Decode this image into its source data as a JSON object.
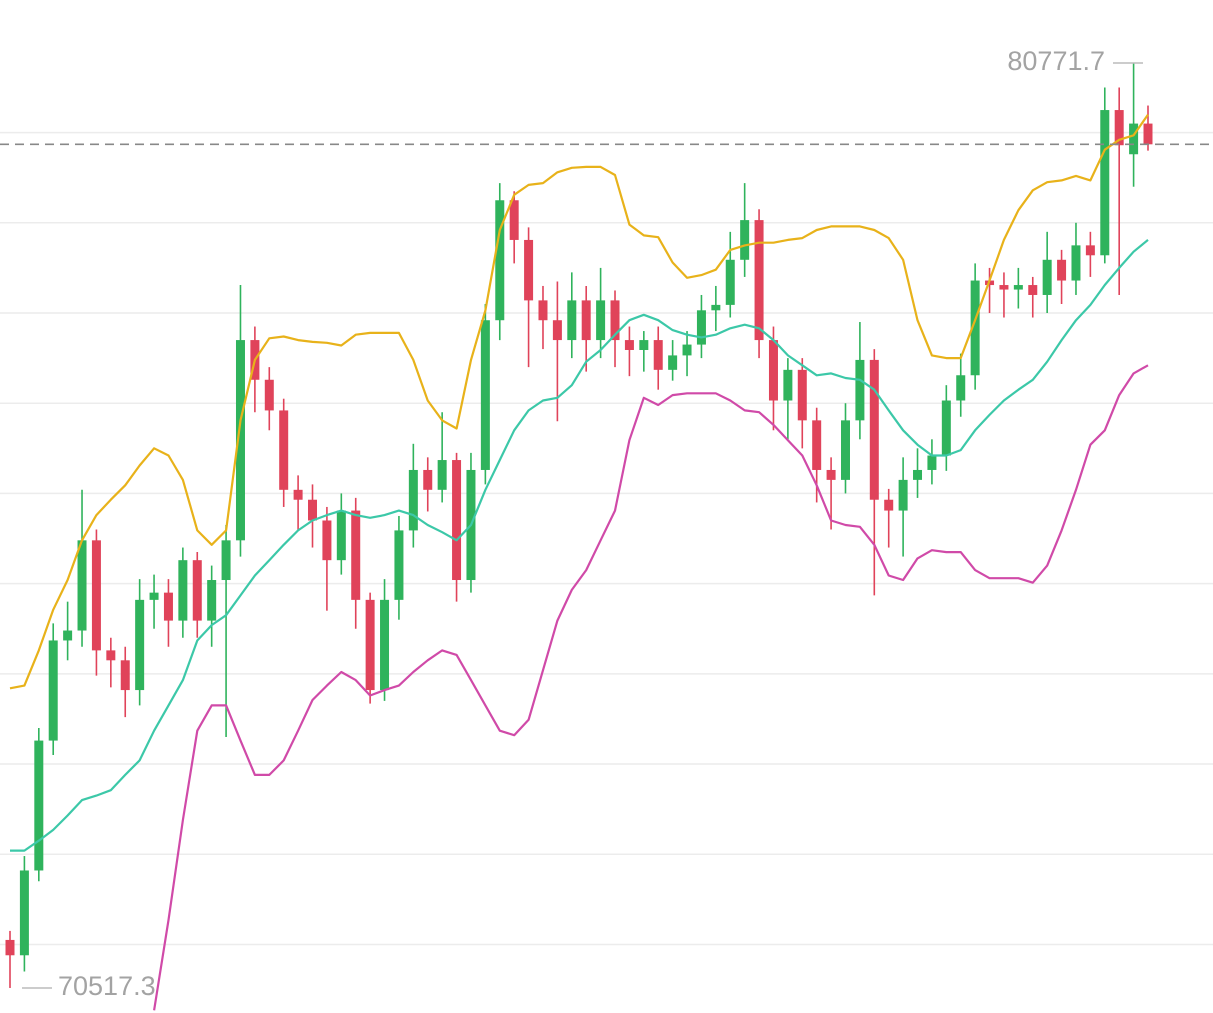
{
  "chart_data": {
    "type": "candlestick",
    "ylim": [
      70240,
      81470
    ],
    "yticks": [
      71000,
      72000,
      73000,
      74000,
      75000,
      76000,
      77000,
      78000,
      79000,
      80000
    ],
    "grid": true,
    "up_color": "#2fb35c",
    "down_color": "#e0435a",
    "last_price": 79870,
    "max_marker": 80771.7,
    "min_marker": 70517.3,
    "open": [
      71050,
      70880,
      71820,
      73260,
      74370,
      74480,
      75480,
      74260,
      74150,
      73820,
      74820,
      74900,
      74590,
      75260,
      74590,
      75040,
      75480,
      77700,
      77260,
      76920,
      76040,
      75930,
      75700,
      75260,
      75810,
      74820,
      73820,
      74820,
      75590,
      76260,
      76040,
      76370,
      75040,
      76260,
      77920,
      79250,
      78810,
      78140,
      77920,
      77700,
      78140,
      77700,
      78140,
      77700,
      77590,
      77700,
      77370,
      77530,
      77650,
      78030,
      78090,
      78590,
      79030,
      77700,
      77030,
      77370,
      76810,
      76260,
      76150,
      76810,
      77480,
      75930,
      75810,
      76150,
      76260,
      76420,
      77030,
      77310,
      78360,
      78310,
      78260,
      78310,
      78200,
      78590,
      78360,
      78750,
      78640,
      80250,
      79760,
      80100
    ],
    "high": [
      71150,
      71980,
      73400,
      74560,
      74800,
      76040,
      75600,
      74400,
      74300,
      75050,
      75100,
      75050,
      75400,
      75350,
      75200,
      75650,
      78310,
      77850,
      77400,
      77050,
      76200,
      76100,
      75850,
      76000,
      75950,
      74900,
      75050,
      75750,
      76550,
      76400,
      76900,
      76450,
      76450,
      78100,
      79440,
      79350,
      78950,
      78300,
      78350,
      78450,
      78300,
      78500,
      78250,
      77850,
      77800,
      77850,
      77700,
      77800,
      78200,
      78300,
      78900,
      79440,
      79150,
      77850,
      77500,
      77500,
      76950,
      76400,
      77000,
      77900,
      77600,
      76050,
      76400,
      76500,
      76600,
      77200,
      77550,
      78550,
      78500,
      78450,
      78500,
      78400,
      78900,
      78700,
      79000,
      78900,
      80500,
      80500,
      80771.7,
      80300
    ],
    "low": [
      70517.3,
      70700,
      71700,
      73100,
      74150,
      74300,
      73980,
      73850,
      73520,
      73650,
      74500,
      74300,
      74400,
      74400,
      74300,
      73300,
      75300,
      76900,
      76700,
      75850,
      75600,
      75400,
      74700,
      75100,
      74500,
      73670,
      73700,
      74600,
      75400,
      75800,
      75900,
      74800,
      74900,
      76100,
      77700,
      78550,
      77400,
      77600,
      76800,
      77500,
      77350,
      77500,
      77400,
      77300,
      77350,
      77150,
      77250,
      77300,
      77500,
      77800,
      77950,
      78400,
      77500,
      76700,
      76600,
      76500,
      75900,
      75600,
      76000,
      76600,
      74870,
      75400,
      75300,
      75950,
      76100,
      76250,
      76850,
      77150,
      78000,
      77950,
      78050,
      77950,
      78000,
      78100,
      78200,
      78400,
      78550,
      78200,
      79400,
      79800
    ],
    "close": [
      70880,
      71820,
      73260,
      74370,
      74480,
      75480,
      74260,
      74150,
      73820,
      74820,
      74900,
      74590,
      75260,
      74590,
      75040,
      75480,
      77700,
      77260,
      76920,
      76040,
      75930,
      75700,
      75260,
      75810,
      74820,
      73820,
      74820,
      75590,
      76260,
      76040,
      76370,
      75040,
      76260,
      77920,
      79250,
      78810,
      78140,
      77920,
      77700,
      78140,
      77700,
      78140,
      77700,
      77590,
      77700,
      77370,
      77530,
      77650,
      78030,
      78090,
      78590,
      79030,
      77700,
      77030,
      77370,
      76810,
      76260,
      76150,
      76810,
      77480,
      75930,
      75810,
      76150,
      76260,
      76420,
      77030,
      77310,
      78360,
      78310,
      78260,
      78310,
      78200,
      78590,
      78360,
      78750,
      78640,
      80250,
      79860,
      80100,
      79870
    ],
    "bands": [
      {
        "color": "#e8b21a",
        "values": [
          73840,
          73870,
          74260,
          74710,
          75040,
          75480,
          75760,
          75930,
          76090,
          76310,
          76500,
          76420,
          76150,
          75590,
          75430,
          75590,
          76810,
          77480,
          77720,
          77740,
          77700,
          77680,
          77670,
          77640,
          77760,
          77780,
          77780,
          77780,
          77480,
          77030,
          76810,
          76720,
          77480,
          78030,
          78920,
          79310,
          79420,
          79440,
          79560,
          79610,
          79620,
          79620,
          79530,
          78980,
          78860,
          78840,
          78560,
          78390,
          78420,
          78480,
          78700,
          78750,
          78780,
          78780,
          78810,
          78830,
          78920,
          78960,
          78960,
          78960,
          78920,
          78830,
          78590,
          77920,
          77530,
          77500,
          77500,
          77920,
          78360,
          78810,
          79140,
          79360,
          79450,
          79470,
          79520,
          79470,
          79810,
          79920,
          79970,
          80200
        ]
      },
      {
        "color": "#3cc8a8",
        "values": [
          72040,
          72040,
          72150,
          72270,
          72430,
          72600,
          72650,
          72710,
          72880,
          73040,
          73370,
          73650,
          73930,
          74370,
          74540,
          74650,
          74870,
          75090,
          75260,
          75430,
          75590,
          75700,
          75760,
          75810,
          75760,
          75730,
          75760,
          75810,
          75760,
          75650,
          75570,
          75480,
          75650,
          76040,
          76370,
          76700,
          76920,
          77030,
          77060,
          77200,
          77460,
          77590,
          77760,
          77920,
          77980,
          77920,
          77810,
          77760,
          77730,
          77760,
          77830,
          77870,
          77830,
          77700,
          77530,
          77420,
          77310,
          77330,
          77280,
          77260,
          77150,
          76920,
          76700,
          76540,
          76420,
          76420,
          76480,
          76700,
          76870,
          77030,
          77150,
          77260,
          77460,
          77700,
          77920,
          78090,
          78310,
          78500,
          78680,
          78810
        ]
      },
      {
        "color": "#d04aa8",
        "values": [
          null,
          null,
          null,
          null,
          null,
          null,
          null,
          null,
          null,
          null,
          70270,
          71270,
          72380,
          73370,
          73650,
          73650,
          73260,
          72880,
          72880,
          73040,
          73370,
          73710,
          73870,
          74020,
          73930,
          73760,
          73820,
          73870,
          74020,
          74150,
          74260,
          74210,
          73930,
          73650,
          73370,
          73320,
          73490,
          74040,
          74590,
          74930,
          75150,
          75480,
          75810,
          76590,
          77060,
          76980,
          77090,
          77110,
          77110,
          77110,
          77030,
          76920,
          76900,
          76760,
          76590,
          76420,
          76090,
          75700,
          75650,
          75630,
          75430,
          75090,
          75040,
          75280,
          75370,
          75350,
          75350,
          75150,
          75060,
          75060,
          75060,
          75010,
          75200,
          75590,
          76040,
          76540,
          76700,
          77090,
          77330,
          77420
        ]
      }
    ]
  }
}
